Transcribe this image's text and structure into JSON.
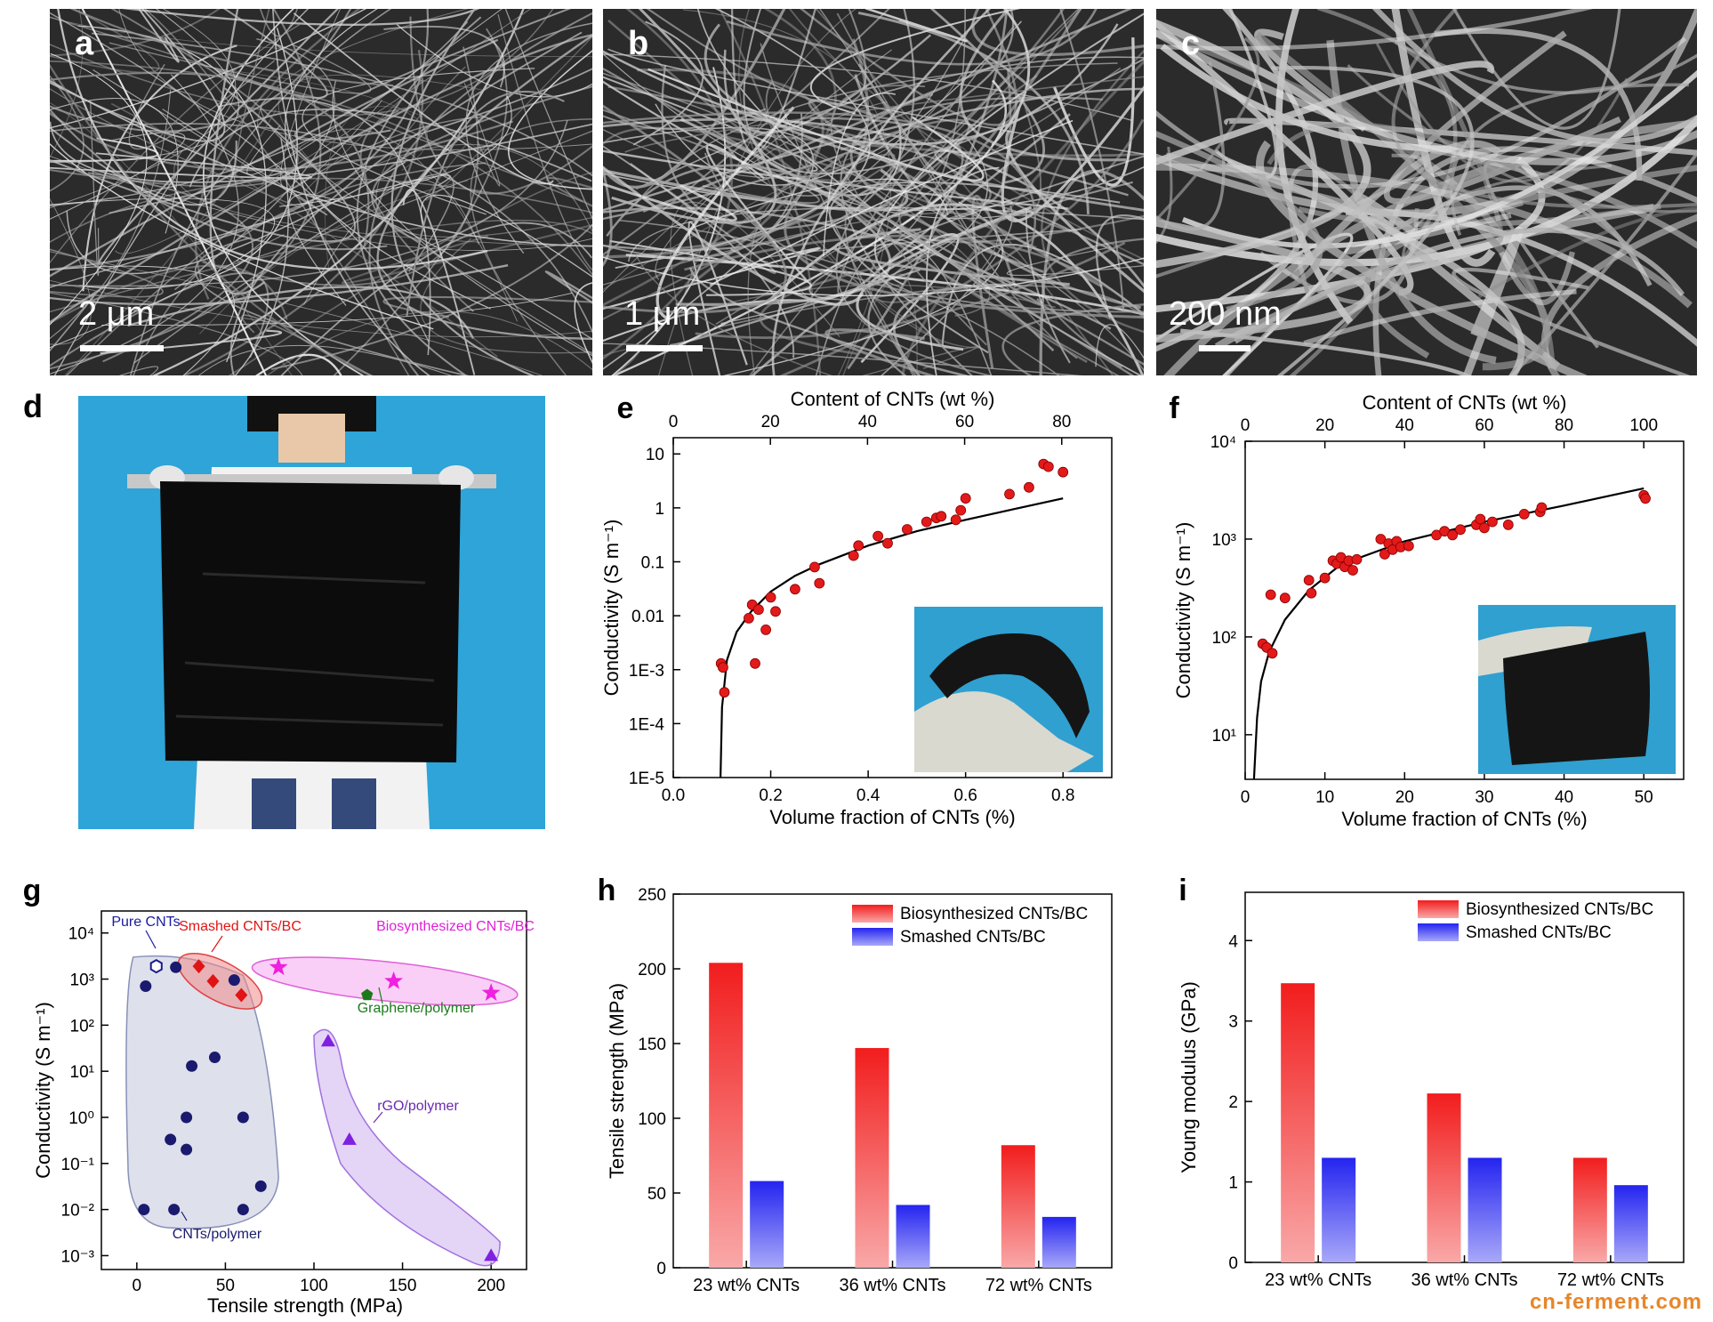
{
  "figure": {
    "panels": {
      "a": {
        "label": "a",
        "scale": "2 μm"
      },
      "b": {
        "label": "b",
        "scale": "1 μm"
      },
      "c": {
        "label": "c",
        "scale": "200 nm"
      },
      "d": {
        "label": "d"
      }
    },
    "watermark": "cn-ferment.com"
  },
  "chart_data": [
    {
      "id": "e",
      "type": "scatter",
      "panel_label": "e",
      "xlabel": "Volume fraction of CNTs (%)",
      "x2label": "Content of CNTs (wt %)",
      "ylabel": "Conductivity (S m⁻¹)",
      "yscale": "log",
      "xlim": [
        0,
        0.9
      ],
      "ylim": [
        1e-05,
        20
      ],
      "x_ticks": [
        "0.0",
        "0.2",
        "0.4",
        "0.6",
        "0.8"
      ],
      "x2_ticks": [
        "0",
        "20",
        "40",
        "60",
        "80"
      ],
      "y_ticks": [
        "1E-5",
        "1E-4",
        "1E-3",
        "0.01",
        "0.1",
        "1",
        "10"
      ],
      "points": [
        [
          0.098,
          0.0013
        ],
        [
          0.102,
          0.0011
        ],
        [
          0.105,
          0.00038
        ],
        [
          0.155,
          0.009
        ],
        [
          0.162,
          0.016
        ],
        [
          0.168,
          0.0013
        ],
        [
          0.175,
          0.013
        ],
        [
          0.19,
          0.0055
        ],
        [
          0.2,
          0.022
        ],
        [
          0.21,
          0.012
        ],
        [
          0.25,
          0.031
        ],
        [
          0.29,
          0.08
        ],
        [
          0.3,
          0.04
        ],
        [
          0.37,
          0.13
        ],
        [
          0.38,
          0.2
        ],
        [
          0.42,
          0.3
        ],
        [
          0.44,
          0.22
        ],
        [
          0.48,
          0.4
        ],
        [
          0.52,
          0.55
        ],
        [
          0.54,
          0.65
        ],
        [
          0.55,
          0.7
        ],
        [
          0.58,
          0.6
        ],
        [
          0.59,
          0.9
        ],
        [
          0.6,
          1.5
        ],
        [
          0.69,
          1.8
        ],
        [
          0.73,
          2.4
        ],
        [
          0.76,
          6.5
        ],
        [
          0.77,
          5.8
        ],
        [
          0.8,
          4.6
        ]
      ],
      "fit": [
        [
          0.097,
          1e-05
        ],
        [
          0.1,
          0.0002
        ],
        [
          0.11,
          0.0015
        ],
        [
          0.13,
          0.005
        ],
        [
          0.16,
          0.012
        ],
        [
          0.2,
          0.028
        ],
        [
          0.25,
          0.055
        ],
        [
          0.3,
          0.09
        ],
        [
          0.4,
          0.2
        ],
        [
          0.5,
          0.37
        ],
        [
          0.6,
          0.6
        ],
        [
          0.7,
          0.95
        ],
        [
          0.8,
          1.5
        ]
      ],
      "inset": "photo"
    },
    {
      "id": "f",
      "type": "scatter",
      "panel_label": "f",
      "xlabel": "Volume fraction of CNTs (%)",
      "x2label": "Content of CNTs (wt %)",
      "ylabel": "Conductivity (S m⁻¹)",
      "yscale": "log",
      "xlim": [
        0,
        55
      ],
      "ylim": [
        3.5,
        10000
      ],
      "x_ticks": [
        "0",
        "10",
        "20",
        "30",
        "40",
        "50"
      ],
      "x2_ticks": [
        "0",
        "20",
        "40",
        "60",
        "80",
        "100"
      ],
      "y_ticks": [
        "10¹",
        "10²",
        "10³",
        "10⁴"
      ],
      "points": [
        [
          2.2,
          85
        ],
        [
          2.7,
          78
        ],
        [
          3.2,
          270
        ],
        [
          3.4,
          68
        ],
        [
          5,
          250
        ],
        [
          8,
          380
        ],
        [
          8.3,
          280
        ],
        [
          10,
          400
        ],
        [
          11,
          600
        ],
        [
          11.5,
          560
        ],
        [
          12,
          650
        ],
        [
          12.5,
          520
        ],
        [
          13,
          600
        ],
        [
          13.5,
          480
        ],
        [
          14,
          620
        ],
        [
          17,
          1000
        ],
        [
          17.5,
          700
        ],
        [
          18,
          900
        ],
        [
          18.5,
          780
        ],
        [
          19,
          950
        ],
        [
          19.5,
          830
        ],
        [
          20.5,
          850
        ],
        [
          24,
          1100
        ],
        [
          25,
          1200
        ],
        [
          26,
          1100
        ],
        [
          27,
          1250
        ],
        [
          29,
          1400
        ],
        [
          29.5,
          1600
        ],
        [
          30,
          1300
        ],
        [
          31,
          1500
        ],
        [
          33,
          1400
        ],
        [
          35,
          1800
        ],
        [
          37,
          1900
        ],
        [
          37.2,
          2100
        ],
        [
          50,
          2800
        ],
        [
          50.2,
          2600
        ]
      ],
      "fit": [
        [
          1.1,
          3.5
        ],
        [
          1.5,
          15
        ],
        [
          2,
          35
        ],
        [
          3,
          70
        ],
        [
          5,
          150
        ],
        [
          8,
          300
        ],
        [
          12,
          550
        ],
        [
          20,
          950
        ],
        [
          30,
          1500
        ],
        [
          40,
          2200
        ],
        [
          50,
          3300
        ]
      ],
      "inset": "photo"
    },
    {
      "id": "g",
      "type": "scatter",
      "panel_label": "g",
      "xlabel": "Tensile strength (MPa)",
      "ylabel": "Conductivity (S m⁻¹)",
      "yscale": "log",
      "xlim": [
        -20,
        220
      ],
      "ylim": [
        0.0005,
        30000
      ],
      "x_ticks": [
        "0",
        "50",
        "100",
        "150",
        "200"
      ],
      "y_ticks": [
        "10⁻³",
        "10⁻²",
        "10⁻¹",
        "10⁰",
        "10¹",
        "10²",
        "10³",
        "10⁴"
      ],
      "series": [
        {
          "name": "Pure CNTs",
          "color": "#1a1a8c",
          "marker": "hexagon",
          "points": [
            [
              11,
              1900
            ]
          ]
        },
        {
          "name": "CNTs/polymer",
          "color": "#1a1a6e",
          "marker": "circle",
          "points": [
            [
              5,
              700
            ],
            [
              22,
              1800
            ],
            [
              55,
              950
            ],
            [
              31,
              13
            ],
            [
              44,
              20
            ],
            [
              28,
              1
            ],
            [
              60,
              1
            ],
            [
              19,
              0.33
            ],
            [
              28,
              0.2
            ],
            [
              70,
              0.032
            ],
            [
              4,
              0.01
            ],
            [
              21,
              0.01
            ],
            [
              60,
              0.01
            ]
          ]
        },
        {
          "name": "Smashed CNTs/BC",
          "color": "#e01414",
          "marker": "diamond",
          "points": [
            [
              35,
              1900
            ],
            [
              43,
              900
            ],
            [
              59,
              450
            ]
          ]
        },
        {
          "name": "Biosynthesized CNTs/BC",
          "color": "#f020e0",
          "marker": "star",
          "points": [
            [
              80,
              1800
            ],
            [
              145,
              900
            ],
            [
              200,
              500
            ]
          ]
        },
        {
          "name": "Graphene/polymer",
          "color": "#1a7a1a",
          "marker": "pentagon",
          "points": [
            [
              130,
              450
            ]
          ]
        },
        {
          "name": "rGO/polymer",
          "color": "#8020e0",
          "marker": "triangle",
          "points": [
            [
              108,
              45
            ],
            [
              120,
              0.33
            ],
            [
              200,
              0.001
            ]
          ]
        }
      ]
    },
    {
      "id": "h",
      "type": "bar",
      "panel_label": "h",
      "categories": [
        "23 wt% CNTs",
        "36 wt% CNTs",
        "72 wt% CNTs"
      ],
      "series": [
        {
          "name": "Biosynthesized CNTs/BC",
          "color": "#f21d1d",
          "values": [
            204,
            147,
            82
          ]
        },
        {
          "name": "Smashed CNTs/BC",
          "color": "#2424f0",
          "values": [
            58,
            42,
            34
          ]
        }
      ],
      "ylabel": "Tensile strength (MPa)",
      "ylim": [
        0,
        250
      ],
      "y_ticks": [
        "0",
        "50",
        "100",
        "150",
        "200",
        "250"
      ]
    },
    {
      "id": "i",
      "type": "bar",
      "panel_label": "i",
      "categories": [
        "23 wt% CNTs",
        "36 wt% CNTs",
        "72 wt% CNTs"
      ],
      "series": [
        {
          "name": "Biosynthesized CNTs/BC",
          "color": "#f21d1d",
          "values": [
            3.47,
            2.1,
            1.3
          ]
        },
        {
          "name": "Smashed CNTs/BC",
          "color": "#2424f0",
          "values": [
            1.3,
            1.3,
            0.96
          ]
        }
      ],
      "ylabel": "Young modulus (GPa)",
      "ylim": [
        0,
        4.6
      ],
      "y_ticks": [
        "0",
        "1",
        "2",
        "3",
        "4"
      ]
    }
  ]
}
